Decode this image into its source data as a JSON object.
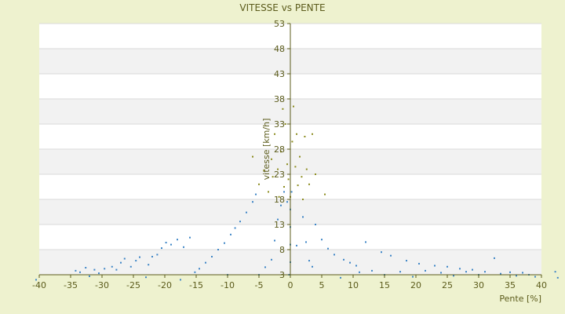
{
  "chart_data": {
    "type": "scatter",
    "title": "VITESSE vs PENTE",
    "xlabel": "Pente [%]",
    "ylabel": "vitesse [km/h]",
    "xlim": [
      -40,
      40
    ],
    "ylim": [
      3,
      53
    ],
    "x_ticks": [
      -40,
      -35,
      -30,
      -25,
      -20,
      -15,
      -10,
      -5,
      0,
      5,
      10,
      15,
      20,
      25,
      30,
      35,
      40
    ],
    "y_ticks": [
      3,
      8,
      13,
      18,
      23,
      28,
      33,
      38,
      43,
      48,
      53
    ],
    "grid": true,
    "legend": "none",
    "colors": {
      "background": "#eef2cf",
      "plot_area": "#ffffff",
      "band": "#f2f2f2",
      "series_main": "#3d85c6",
      "series_secondary": "#8c8c1e",
      "axis": "#5c5c1c"
    },
    "series": [
      {
        "values": [
          [
            -40.5,
            2.0
          ],
          [
            -34.2,
            3.8
          ],
          [
            -33.5,
            3.5
          ],
          [
            -32.6,
            4.4
          ],
          [
            -32.0,
            2.7
          ],
          [
            -31.2,
            4.0
          ],
          [
            -30.5,
            3.3
          ],
          [
            -29.6,
            4.2
          ],
          [
            -28.4,
            4.6
          ],
          [
            -27.7,
            4.0
          ],
          [
            -27.0,
            5.4
          ],
          [
            -26.4,
            6.2
          ],
          [
            -25.4,
            4.6
          ],
          [
            -24.6,
            5.8
          ],
          [
            -24.0,
            6.5
          ],
          [
            -23.0,
            2.5
          ],
          [
            -22.6,
            5.0
          ],
          [
            -22.0,
            6.6
          ],
          [
            -21.2,
            7.0
          ],
          [
            -20.5,
            8.3
          ],
          [
            -19.8,
            9.4
          ],
          [
            -19.0,
            9.0
          ],
          [
            -18.0,
            10.0
          ],
          [
            -17.5,
            2.0
          ],
          [
            -17.0,
            8.5
          ],
          [
            -16.0,
            10.4
          ],
          [
            -15.2,
            3.5
          ],
          [
            -14.5,
            4.2
          ],
          [
            -13.5,
            5.4
          ],
          [
            -12.5,
            6.6
          ],
          [
            -11.5,
            8.0
          ],
          [
            -10.5,
            9.3
          ],
          [
            -10.0,
            3.0
          ],
          [
            -9.5,
            11.0
          ],
          [
            -8.8,
            12.3
          ],
          [
            -8.0,
            13.6
          ],
          [
            -7.0,
            15.4
          ],
          [
            -6.0,
            17.5
          ],
          [
            -5.5,
            19.0
          ],
          [
            -5.0,
            3.0
          ],
          [
            -4.0,
            4.5
          ],
          [
            -3.0,
            6.0
          ],
          [
            -2.5,
            9.8
          ],
          [
            -2.0,
            14.0
          ],
          [
            -1.5,
            16.8
          ],
          [
            -1.0,
            19.5
          ],
          [
            -0.5,
            17.5
          ],
          [
            -0.2,
            3.0
          ],
          [
            0.0,
            5.5
          ],
          [
            0.0,
            9.0
          ],
          [
            0.0,
            12.5
          ],
          [
            0.0,
            16.0
          ],
          [
            0.2,
            19.5
          ],
          [
            1.0,
            8.8
          ],
          [
            2.0,
            14.5
          ],
          [
            2.5,
            9.5
          ],
          [
            3.0,
            5.8
          ],
          [
            3.5,
            4.6
          ],
          [
            4.0,
            13.0
          ],
          [
            5.0,
            10.0
          ],
          [
            6.0,
            8.2
          ],
          [
            7.0,
            7.0
          ],
          [
            8.0,
            2.4
          ],
          [
            8.5,
            6.0
          ],
          [
            9.5,
            5.4
          ],
          [
            10.5,
            4.8
          ],
          [
            11.0,
            3.5
          ],
          [
            12.0,
            9.5
          ],
          [
            13.0,
            3.8
          ],
          [
            14.5,
            7.5
          ],
          [
            15.0,
            3.0
          ],
          [
            16.0,
            6.8
          ],
          [
            17.5,
            3.6
          ],
          [
            18.5,
            5.8
          ],
          [
            19.5,
            2.6
          ],
          [
            20.5,
            5.2
          ],
          [
            21.5,
            3.8
          ],
          [
            23.0,
            4.8
          ],
          [
            24.0,
            3.4
          ],
          [
            25.0,
            4.6
          ],
          [
            26.0,
            2.8
          ],
          [
            27.0,
            4.2
          ],
          [
            28.0,
            3.6
          ],
          [
            29.0,
            4.0
          ],
          [
            30.0,
            3.0
          ],
          [
            31.0,
            3.6
          ],
          [
            32.5,
            6.3
          ],
          [
            33.5,
            3.2
          ],
          [
            35.0,
            3.5
          ],
          [
            36.0,
            2.8
          ],
          [
            37.0,
            3.4
          ],
          [
            38.0,
            3.0
          ],
          [
            39.0,
            2.6
          ],
          [
            42.2,
            3.6
          ],
          [
            42.6,
            2.4
          ]
        ]
      },
      {
        "values": [
          [
            -6.0,
            26.5
          ],
          [
            -5.0,
            21.0
          ],
          [
            -4.2,
            23.8
          ],
          [
            -3.5,
            19.5
          ],
          [
            -3.0,
            26.0
          ],
          [
            -2.8,
            22.5
          ],
          [
            -2.5,
            31.0
          ],
          [
            -2.0,
            24.0
          ],
          [
            -1.8,
            18.5
          ],
          [
            -1.5,
            27.5
          ],
          [
            -1.2,
            36.0
          ],
          [
            -1.0,
            20.5
          ],
          [
            -0.8,
            33.0
          ],
          [
            -0.5,
            25.0
          ],
          [
            -0.3,
            22.0
          ],
          [
            0.0,
            18.5
          ],
          [
            0.3,
            29.5
          ],
          [
            0.5,
            36.5
          ],
          [
            0.8,
            24.5
          ],
          [
            1.0,
            31.0
          ],
          [
            1.2,
            20.8
          ],
          [
            1.5,
            26.5
          ],
          [
            1.8,
            22.5
          ],
          [
            2.0,
            18.0
          ],
          [
            2.3,
            30.5
          ],
          [
            2.6,
            24.0
          ],
          [
            3.0,
            21.0
          ],
          [
            3.5,
            31.0
          ],
          [
            4.0,
            23.0
          ],
          [
            5.5,
            19.0
          ]
        ]
      }
    ]
  }
}
